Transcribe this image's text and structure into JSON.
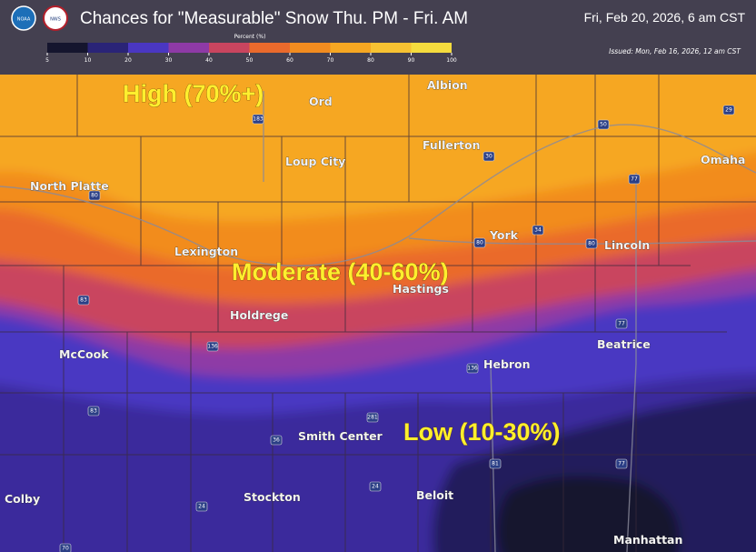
{
  "header": {
    "logos": [
      "NOAA",
      "NWS"
    ],
    "title": "Chances for \"Measurable\" Snow Thu. PM - Fri. AM",
    "valid": "Fri, Feb 20, 2026, 6 am CST",
    "issued": "Issued: Mon, Feb 16, 2026, 12 am CST"
  },
  "legend": {
    "title": "Percent (%)",
    "ticks": [
      5,
      10,
      20,
      30,
      40,
      50,
      60,
      70,
      80,
      90,
      100
    ],
    "colors": [
      "#15152e",
      "#2a2477",
      "#4a37c2",
      "#8e3aa6",
      "#c9455f",
      "#ea6a2c",
      "#f28c1f",
      "#f6a722",
      "#f7c232",
      "#f5dc3e"
    ]
  },
  "regions": [
    "High (70%+)",
    "Moderate (40-60%)",
    "Low (10-30%)"
  ],
  "cities": [
    "Ord",
    "Albion",
    "Fullerton",
    "Loup City",
    "North Platte",
    "Omaha",
    "York",
    "Lincoln",
    "Lexington",
    "Hastings",
    "Holdrege",
    "McCook",
    "Beatrice",
    "Hebron",
    "Smith Center",
    "Colby",
    "Stockton",
    "Beloit",
    "Manhattan"
  ],
  "shields": [
    "183",
    "80",
    "30",
    "50",
    "29",
    "77",
    "80",
    "34",
    "80",
    "83",
    "136",
    "77",
    "136",
    "83",
    "281",
    "36",
    "24",
    "24",
    "81",
    "77",
    "70"
  ]
}
